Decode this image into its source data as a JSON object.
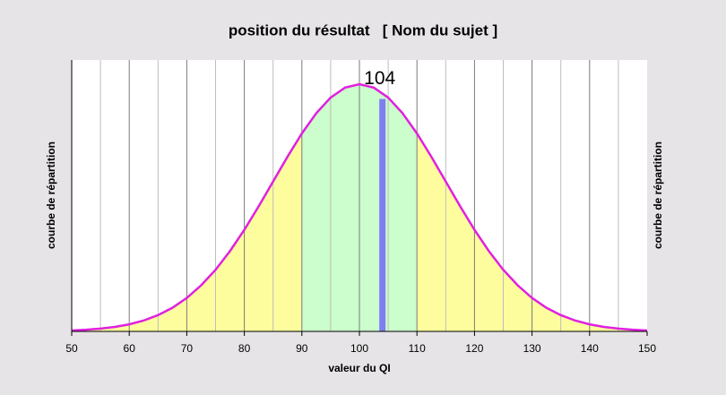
{
  "chart_data": {
    "type": "area",
    "title": "position du résultat   [ Nom du sujet ]",
    "xlabel": "valeur du QI",
    "ylabel": "courbe de répartition",
    "y2label": "courbe de répartition",
    "x": [
      50,
      52.5,
      55,
      57.5,
      60,
      62.5,
      65,
      67.5,
      70,
      72.5,
      75,
      77.5,
      80,
      82.5,
      85,
      87.5,
      90,
      92.5,
      95,
      97.5,
      100,
      102.5,
      105,
      107.5,
      110,
      112.5,
      115,
      117.5,
      120,
      122.5,
      125,
      127.5,
      130,
      132.5,
      135,
      137.5,
      140,
      142.5,
      145,
      147.5,
      150
    ],
    "series": [
      {
        "color": "#e020e0",
        "values": [
          0.1,
          0.18,
          0.3,
          0.48,
          0.76,
          1.17,
          1.75,
          2.54,
          3.6,
          4.96,
          6.63,
          8.64,
          10.93,
          13.47,
          16.13,
          18.79,
          21.3,
          23.47,
          25.16,
          26.23,
          26.6,
          26.23,
          25.16,
          23.47,
          21.3,
          18.79,
          16.13,
          13.47,
          10.93,
          8.64,
          6.63,
          4.96,
          3.6,
          2.54,
          1.75,
          1.17,
          0.76,
          0.48,
          0.3,
          0.18,
          0.1
        ]
      }
    ],
    "bands": [
      {
        "from": 50,
        "to": 90,
        "color": "#fdfd9e"
      },
      {
        "from": 90,
        "to": 110,
        "color": "#ccfdcc"
      },
      {
        "from": 110,
        "to": 150,
        "color": "#fdfd9e"
      }
    ],
    "result": 104,
    "result_color": "#7f7ff2",
    "xlim": [
      50,
      150
    ],
    "xticks": [
      50,
      60,
      70,
      80,
      90,
      100,
      110,
      120,
      130,
      140,
      150
    ],
    "ylim": [
      0,
      29.2
    ],
    "grid": true,
    "minor_grid": true
  }
}
